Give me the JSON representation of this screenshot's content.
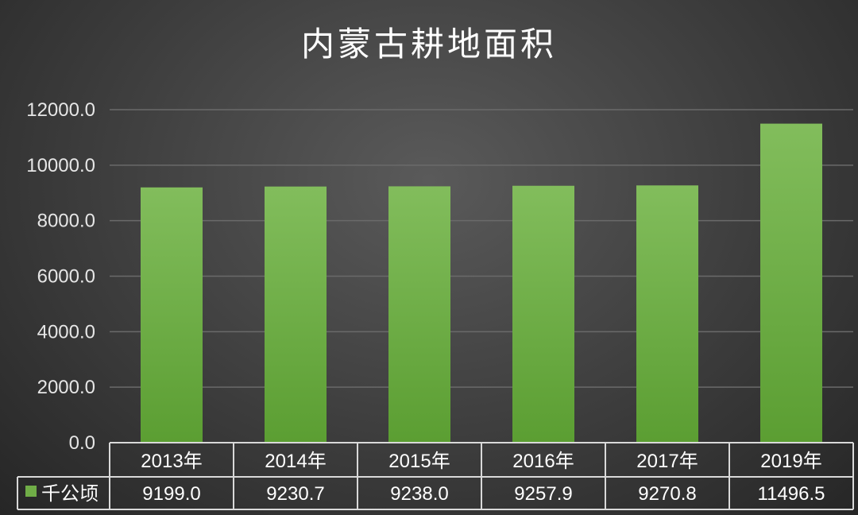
{
  "chart_data": {
    "type": "bar",
    "title": "内蒙古耕地面积",
    "categories": [
      "2013年",
      "2014年",
      "2015年",
      "2016年",
      "2017年",
      "2019年"
    ],
    "series": [
      {
        "name": "千公顷",
        "values": [
          9199.0,
          9230.7,
          9238.0,
          9257.9,
          9270.8,
          11496.5
        ],
        "value_labels": [
          "9199.0",
          "9230.7",
          "9238.0",
          "9257.9",
          "9270.8",
          "11496.5"
        ]
      }
    ],
    "ylim": [
      0,
      12000
    ],
    "yticks": [
      "0.0",
      "2000.0",
      "4000.0",
      "6000.0",
      "8000.0",
      "10000.0",
      "12000.0"
    ],
    "xlabel": "",
    "ylabel": "",
    "grid": true,
    "legend": "in data table",
    "data_table": true,
    "colors": {
      "bar_top": "#82bd5c",
      "bar_bottom": "#5b9e32",
      "legend_marker": "#70ad47",
      "grid": "#6a6a6a",
      "table_border": "#d9d9d9"
    }
  }
}
